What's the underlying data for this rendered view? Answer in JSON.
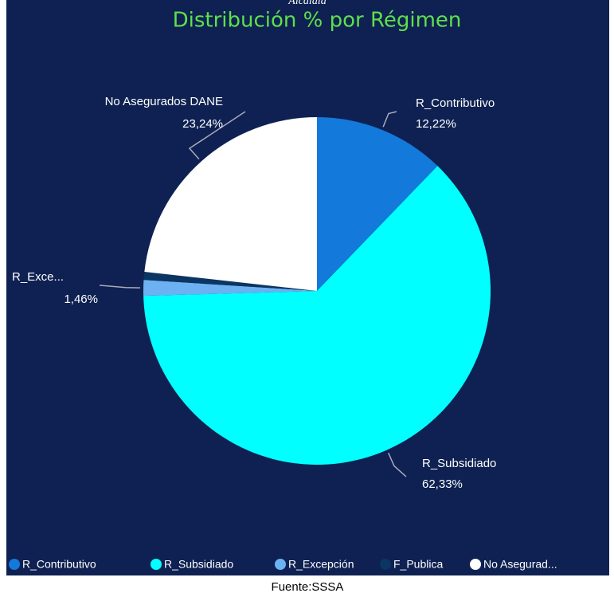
{
  "header": "Alcaldía",
  "footer": "Fuente:SSSA",
  "chart_data": {
    "type": "pie",
    "title": "Distribución % por Régimen",
    "categories": [
      "R_Contributivo",
      "R_Subsidiado",
      "R_Excepción",
      "F_Publica",
      "No Asegurad..."
    ],
    "slice_labels": [
      "R_Contributivo",
      "R_Subsidiado",
      "R_Exce...",
      null,
      "No Asegurados DANE"
    ],
    "values": [
      12.22,
      62.33,
      1.46,
      0.75,
      23.24
    ],
    "value_labels": [
      "12,22%",
      "62,33%",
      "1,46%",
      null,
      "23,24%"
    ],
    "colors": [
      "#1379da",
      "#00ffff",
      "#6cb2f2",
      "#0b3563",
      "#ffffff"
    ],
    "legend": "bottom"
  }
}
